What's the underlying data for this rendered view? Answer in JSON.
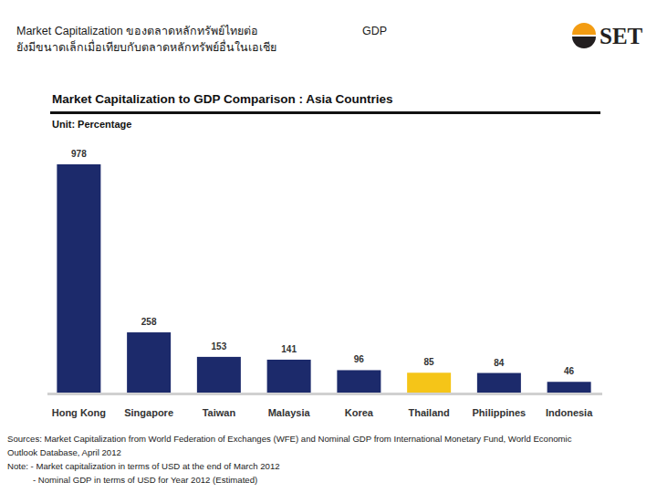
{
  "header": {
    "line1": [
      "Market Capitalization ของตลาดหลักทรัพย์ไทยต่อ",
      "GDP"
    ],
    "line2": "ยังมีขนาดเล็กเมื่อเทียบกับตลาดหลักทรัพย์อื่นในเอเชีย",
    "logo": "SET"
  },
  "chart_data": {
    "type": "bar",
    "title": "Market Capitalization to GDP Comparison : Asia Countries",
    "subtitle": "Unit: Percentage",
    "categories": [
      "Hong Kong",
      "Singapore",
      "Taiwan",
      "Malaysia",
      "Korea",
      "Thailand",
      "Philippines",
      "Indonesia"
    ],
    "values": [
      978,
      258,
      153,
      141,
      96,
      85,
      84,
      46
    ],
    "colors": [
      "#1c2a6b",
      "#1c2a6b",
      "#1c2a6b",
      "#1c2a6b",
      "#1c2a6b",
      "#f5c518",
      "#1c2a6b",
      "#1c2a6b"
    ],
    "ylim": [
      0,
      978
    ],
    "grid": false,
    "data_labels": true,
    "tick_labels": "x"
  },
  "footnotes": [
    "Sources: Market Capitalization from World Federation of Exchanges (WFE) and Nominal GDP from International Monetary Fund, World Economic",
    "Outlook Database, April 2012",
    "Note: - Market capitalization in terms of USD at the end of March 2012",
    "- Nominal GDP in terms of USD for Year 2012 (Estimated)"
  ]
}
